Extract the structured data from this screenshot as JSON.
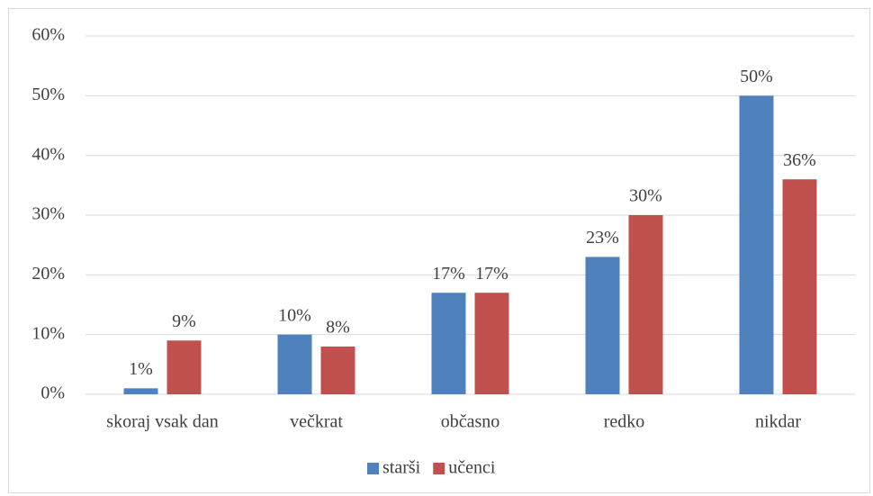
{
  "chart_data": {
    "type": "bar",
    "categories": [
      "skoraj vsak dan",
      "večkrat",
      "občasno",
      "redko",
      "nikdar"
    ],
    "series": [
      {
        "name": "starši",
        "color": "#4f81bd",
        "values": [
          1,
          10,
          17,
          23,
          50
        ],
        "value_labels": [
          "1%",
          "10%",
          "17%",
          "23%",
          "50%"
        ]
      },
      {
        "name": "učenci",
        "color": "#c0504d",
        "values": [
          9,
          8,
          17,
          30,
          36
        ],
        "value_labels": [
          "9%",
          "8%",
          "17%",
          "30%",
          "36%"
        ]
      }
    ],
    "ylim": [
      0,
      60
    ],
    "yticks": [
      {
        "value": 0,
        "label": "0%"
      },
      {
        "value": 10,
        "label": "10%"
      },
      {
        "value": 20,
        "label": "20%"
      },
      {
        "value": 30,
        "label": "30%"
      },
      {
        "value": 40,
        "label": "40%"
      },
      {
        "value": 50,
        "label": "50%"
      },
      {
        "value": 60,
        "label": "60%"
      }
    ],
    "grid": true,
    "legend": "bottom"
  }
}
